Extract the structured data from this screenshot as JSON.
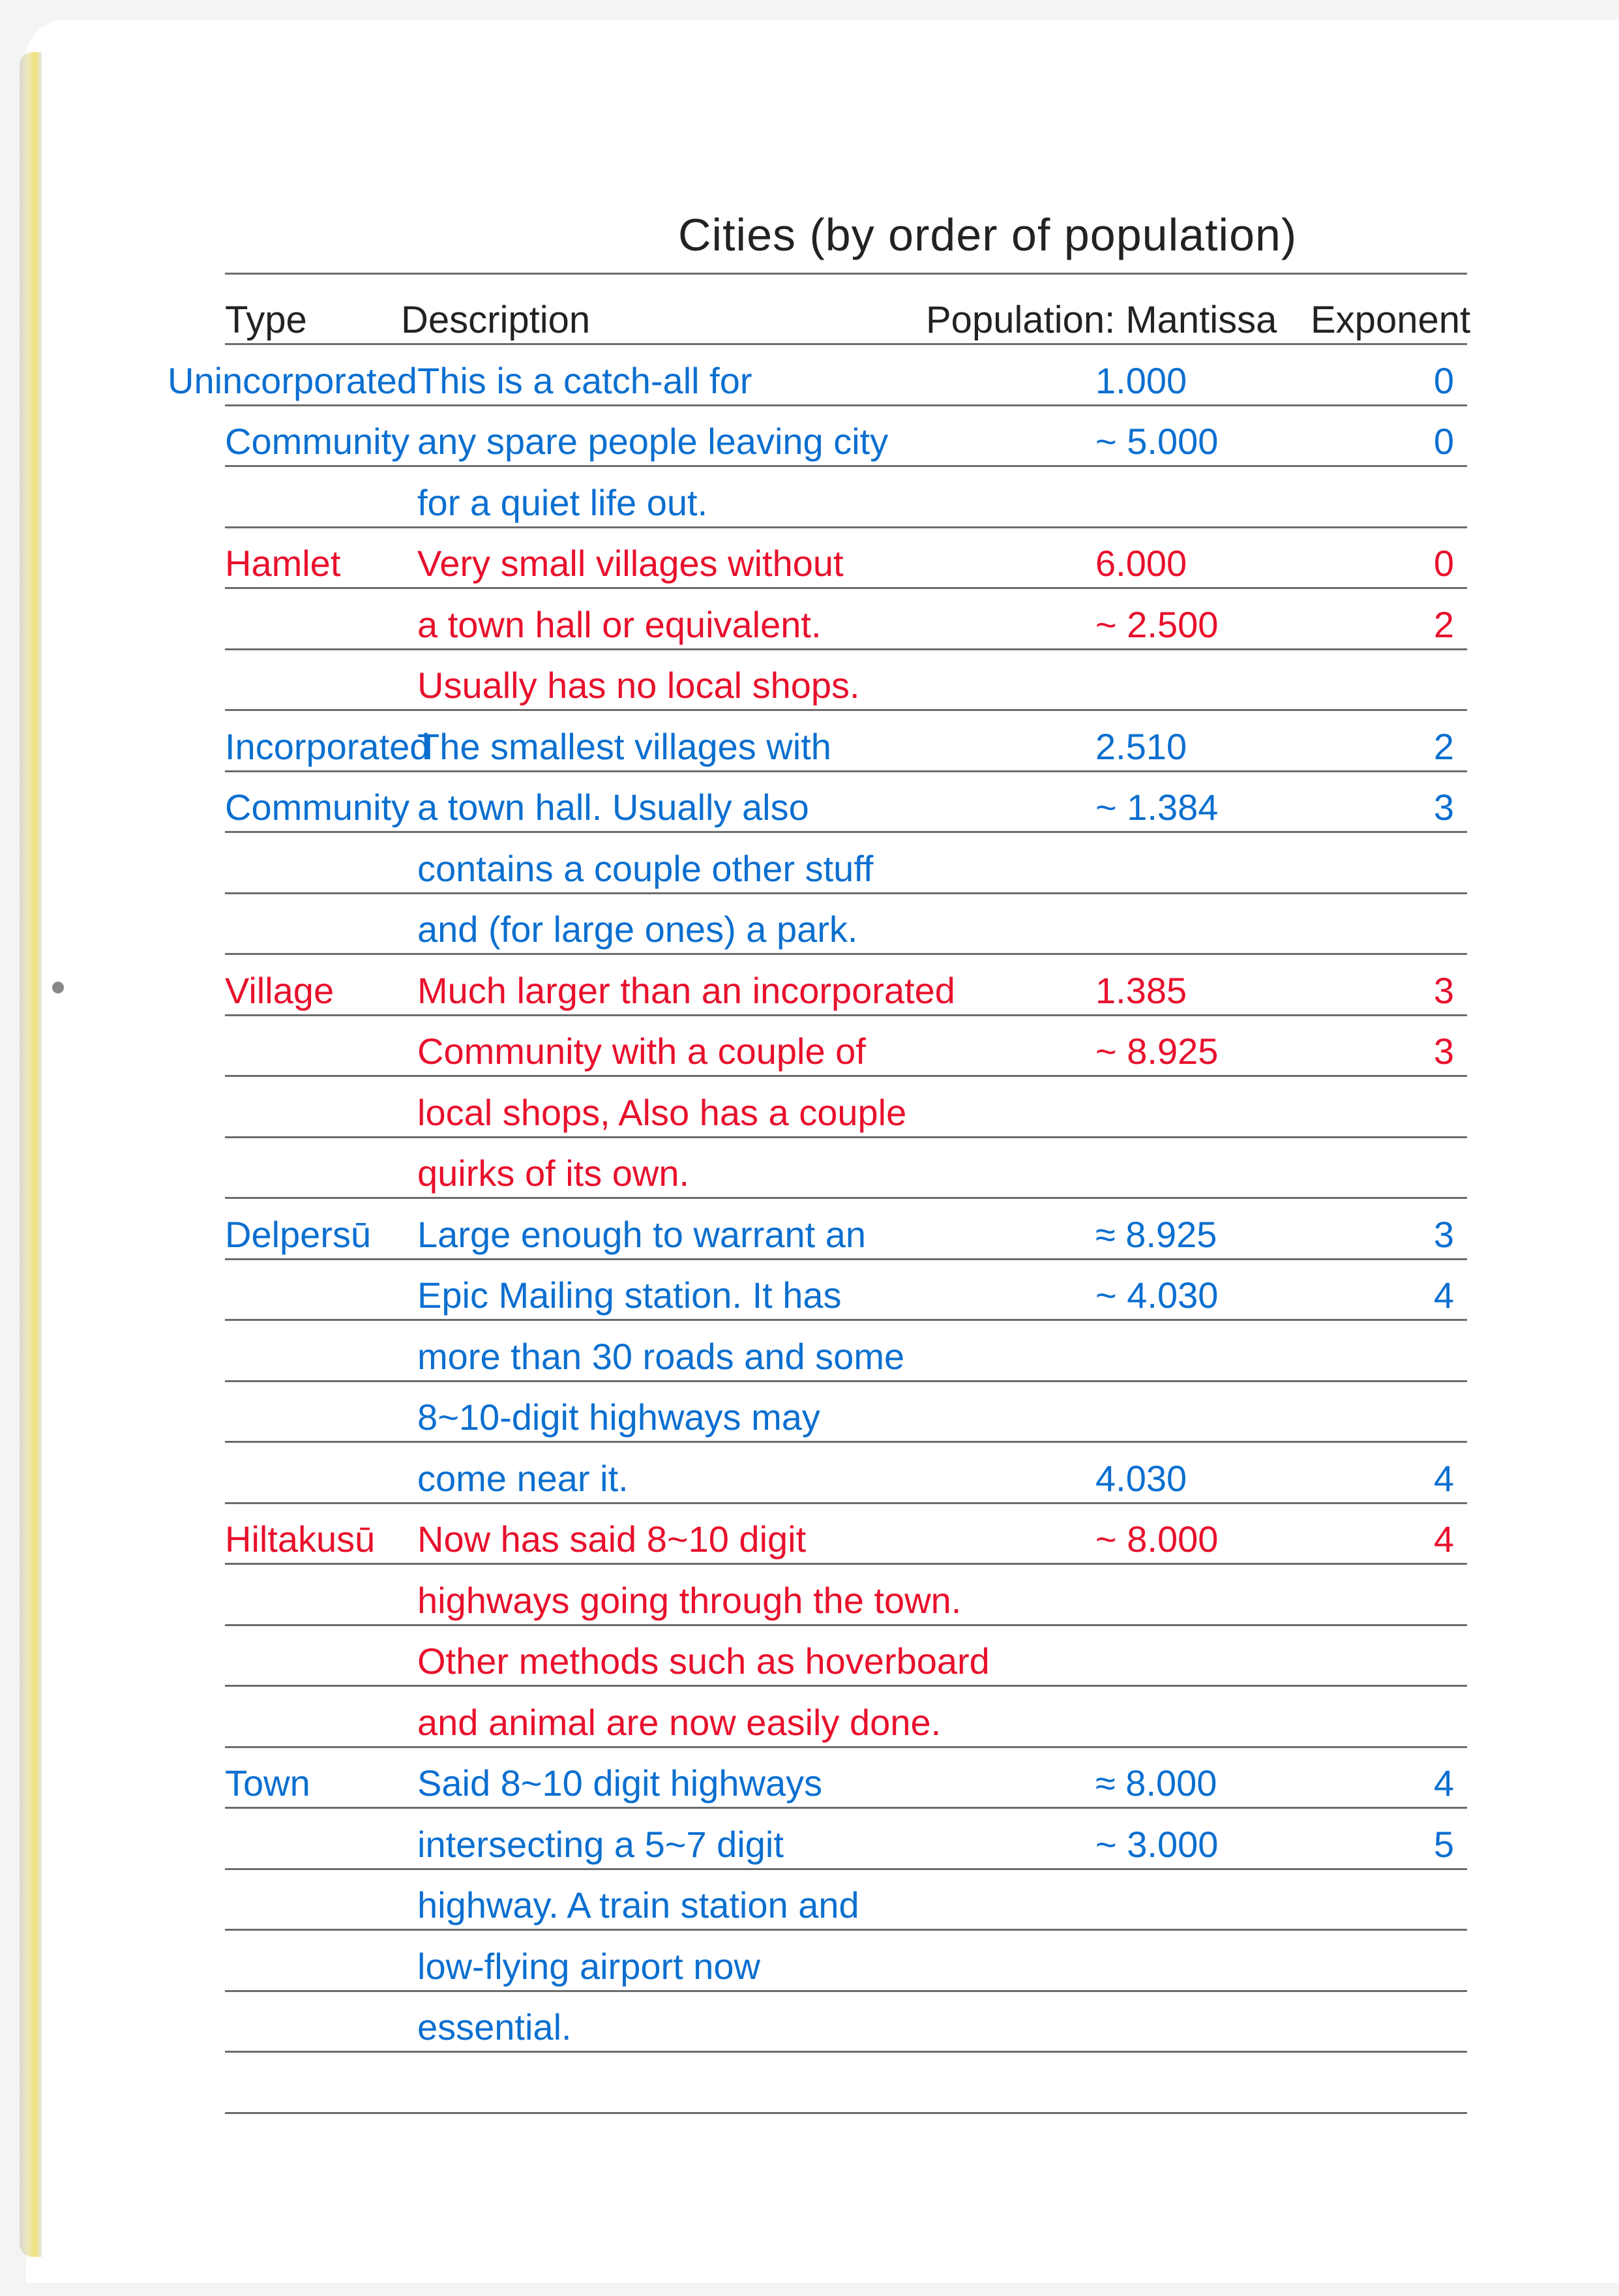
{
  "title": "Cities (by order of population)",
  "header": {
    "type": "Type",
    "description": "Description",
    "mantissa": "Population: Mantissa",
    "exponent": "Exponent"
  },
  "colors": {
    "blue": "#0b6fd0",
    "red": "#e8102c",
    "ink": "#222222"
  },
  "lines": [
    {
      "type": "Unincorporated",
      "desc": "This is a catch-all for",
      "mantissa": "1.000",
      "exponent": "0",
      "color": "blue"
    },
    {
      "type": "Community",
      "desc": "any spare people leaving city",
      "mantissa": "~ 5.000",
      "exponent": "0",
      "color": "blue"
    },
    {
      "type": "",
      "desc": "for a quiet life out.",
      "mantissa": "",
      "exponent": "",
      "color": "blue"
    },
    {
      "type": "Hamlet",
      "desc": "Very small villages without",
      "mantissa": "6.000",
      "exponent": "0",
      "color": "red"
    },
    {
      "type": "",
      "desc": "a town hall or equivalent.",
      "mantissa": "~ 2.500",
      "exponent": "2",
      "color": "red"
    },
    {
      "type": "",
      "desc": "Usually has no local shops.",
      "mantissa": "",
      "exponent": "",
      "color": "red"
    },
    {
      "type": "Incorporated",
      "desc": "The smallest villages with",
      "mantissa": "2.510",
      "exponent": "2",
      "color": "blue"
    },
    {
      "type": "Community",
      "desc": "a town hall. Usually also",
      "mantissa": "~ 1.384",
      "exponent": "3",
      "color": "blue"
    },
    {
      "type": "",
      "desc": "contains a couple other stuff",
      "mantissa": "",
      "exponent": "",
      "color": "blue"
    },
    {
      "type": "",
      "desc": "and (for large ones) a park.",
      "mantissa": "",
      "exponent": "",
      "color": "blue"
    },
    {
      "type": "Village",
      "desc": "Much larger than an incorporated",
      "mantissa": "1.385",
      "exponent": "3",
      "color": "red"
    },
    {
      "type": "",
      "desc": "Community with a couple of",
      "mantissa": "~ 8.925",
      "exponent": "3",
      "color": "red"
    },
    {
      "type": "",
      "desc": "local shops, Also has a couple",
      "mantissa": "",
      "exponent": "",
      "color": "red"
    },
    {
      "type": "",
      "desc": "quirks of its own.",
      "mantissa": "",
      "exponent": "",
      "color": "red"
    },
    {
      "type": "Delpersū",
      "desc": "Large enough to warrant an",
      "mantissa": "≈ 8.925",
      "exponent": "3",
      "color": "blue"
    },
    {
      "type": "",
      "desc": "Epic Mailing station. It has",
      "mantissa": "~ 4.030",
      "exponent": "4",
      "color": "blue"
    },
    {
      "type": "",
      "desc": "more than 30 roads and some",
      "mantissa": "",
      "exponent": "",
      "color": "blue"
    },
    {
      "type": "",
      "desc": "8~10-digit highways may",
      "mantissa": "",
      "exponent": "",
      "color": "blue"
    },
    {
      "type": "",
      "desc": "come near it.",
      "mantissa": "4.030",
      "exponent": "4",
      "color": "blue"
    },
    {
      "type": "Hiltakusū",
      "desc": "Now has said 8~10 digit",
      "mantissa": "~ 8.000",
      "exponent": "4",
      "color": "red"
    },
    {
      "type": "",
      "desc": "highways going through the town.",
      "mantissa": "",
      "exponent": "",
      "color": "red"
    },
    {
      "type": "",
      "desc": "Other methods such as hoverboard",
      "mantissa": "",
      "exponent": "",
      "color": "red"
    },
    {
      "type": "",
      "desc": "and animal are now easily done.",
      "mantissa": "",
      "exponent": "",
      "color": "red"
    },
    {
      "type": "Town",
      "desc": "Said 8~10 digit highways",
      "mantissa": "≈ 8.000",
      "exponent": "4",
      "color": "blue"
    },
    {
      "type": "",
      "desc": "intersecting a 5~7 digit",
      "mantissa": "~ 3.000",
      "exponent": "5",
      "color": "blue"
    },
    {
      "type": "",
      "desc": "highway. A train station and",
      "mantissa": "",
      "exponent": "",
      "color": "blue"
    },
    {
      "type": "",
      "desc": "low-flying airport now",
      "mantissa": "",
      "exponent": "",
      "color": "blue"
    },
    {
      "type": "",
      "desc": "essential.",
      "mantissa": "",
      "exponent": "",
      "color": "blue"
    }
  ]
}
